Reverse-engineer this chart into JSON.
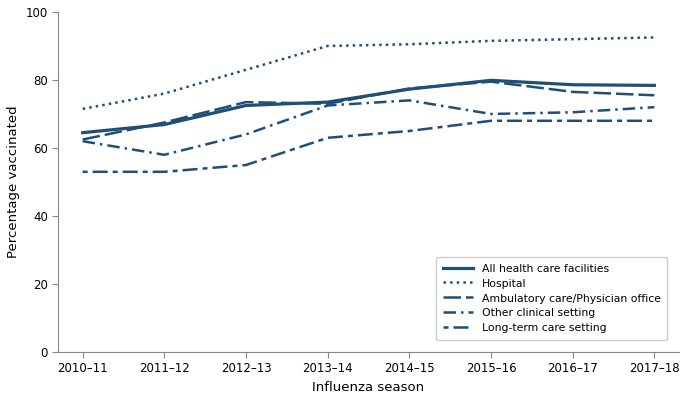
{
  "seasons": [
    "2010–11",
    "2011–12",
    "2012–13",
    "2013–14",
    "2014–15",
    "2015–16",
    "2016–17",
    "2017–18"
  ],
  "all_facilities": [
    64.5,
    66.9,
    72.5,
    73.5,
    77.3,
    79.9,
    78.6,
    78.4
  ],
  "hospital": [
    71.5,
    76.0,
    83.0,
    90.0,
    90.5,
    91.5,
    92.0,
    92.5
  ],
  "ambulatory": [
    62.5,
    67.5,
    73.5,
    73.0,
    77.5,
    79.5,
    76.5,
    75.5
  ],
  "other_clinical": [
    62.0,
    58.0,
    64.0,
    72.5,
    74.0,
    70.0,
    70.5,
    72.0
  ],
  "long_term": [
    53.0,
    53.0,
    55.0,
    63.0,
    65.0,
    68.0,
    68.0,
    68.0
  ],
  "line_color": "#1f4e79",
  "xlabel": "Influenza season",
  "ylabel": "Percentage vaccinated",
  "ylim": [
    0,
    100
  ],
  "yticks": [
    0,
    20,
    40,
    60,
    80,
    100
  ],
  "legend_labels": [
    "All health care facilities",
    "Hospital",
    "Ambulatory care/Physician office",
    "Other clinical setting",
    "Long-term care setting"
  ],
  "background_color": "#ffffff"
}
